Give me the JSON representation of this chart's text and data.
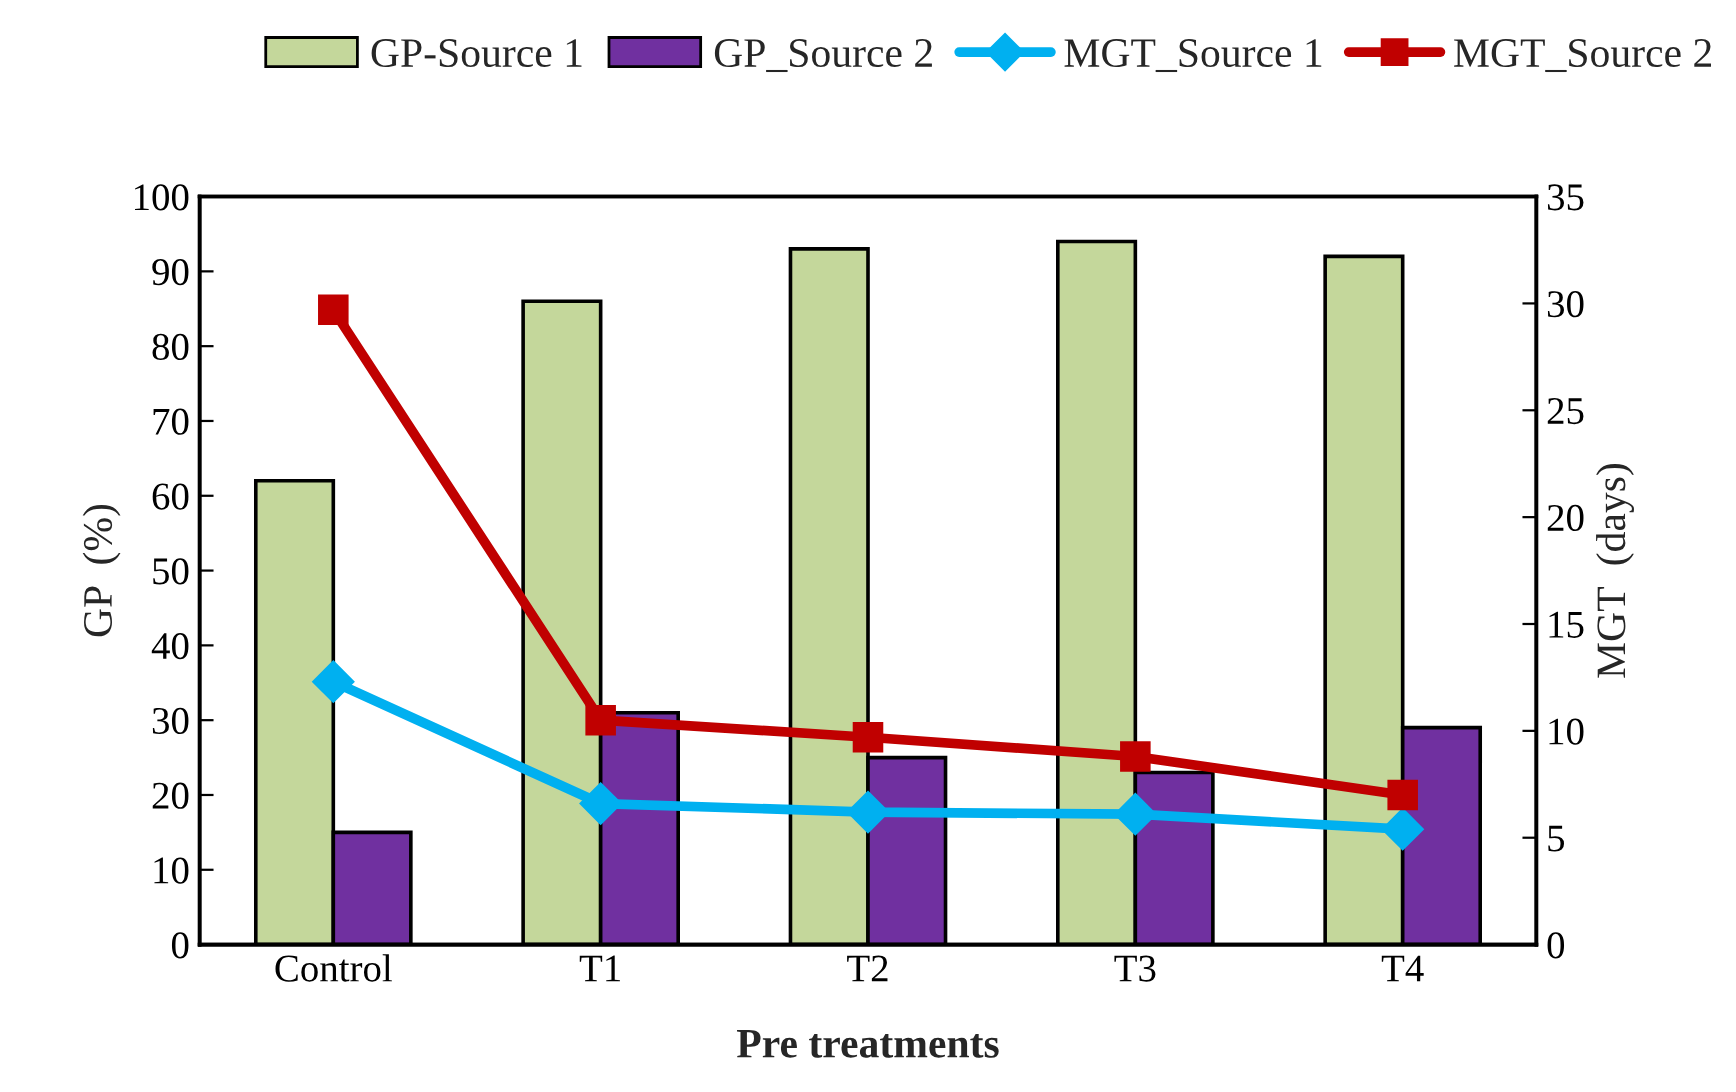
{
  "chart_data": {
    "type": "bar",
    "xlabel": "Pre treatments",
    "ylabel": "GP  (%)",
    "y2label": "MGT  (days)",
    "categories": [
      "Control",
      "T1",
      "T2",
      "T3",
      "T4"
    ],
    "series": [
      {
        "name": "GP-Source 1",
        "color": "#c4d79b",
        "values": [
          62,
          86,
          93,
          94,
          92
        ]
      },
      {
        "name": "GP_Source 2",
        "color": "#7030a0",
        "values": [
          15,
          31,
          25,
          23,
          29
        ]
      },
      {
        "name": "MGT_Source 1",
        "type": "line",
        "axis": "y2",
        "color": "#00b0f0",
        "marker": "diamond",
        "values": [
          12.3,
          6.6,
          6.2,
          6.1,
          5.4
        ]
      },
      {
        "name": "MGT_Source 2",
        "type": "line",
        "axis": "y2",
        "color": "#c00000",
        "marker": "square",
        "values": [
          29.7,
          10.5,
          9.7,
          8.8,
          7.0
        ]
      }
    ],
    "ylim": [
      0,
      100
    ],
    "yticks": [
      0,
      10,
      20,
      30,
      40,
      50,
      60,
      70,
      80,
      90,
      100
    ],
    "y2lim": [
      0,
      35
    ],
    "y2ticks": [
      0,
      5,
      10,
      15,
      20,
      25,
      30,
      35
    ],
    "grid": false,
    "legend": "top"
  }
}
